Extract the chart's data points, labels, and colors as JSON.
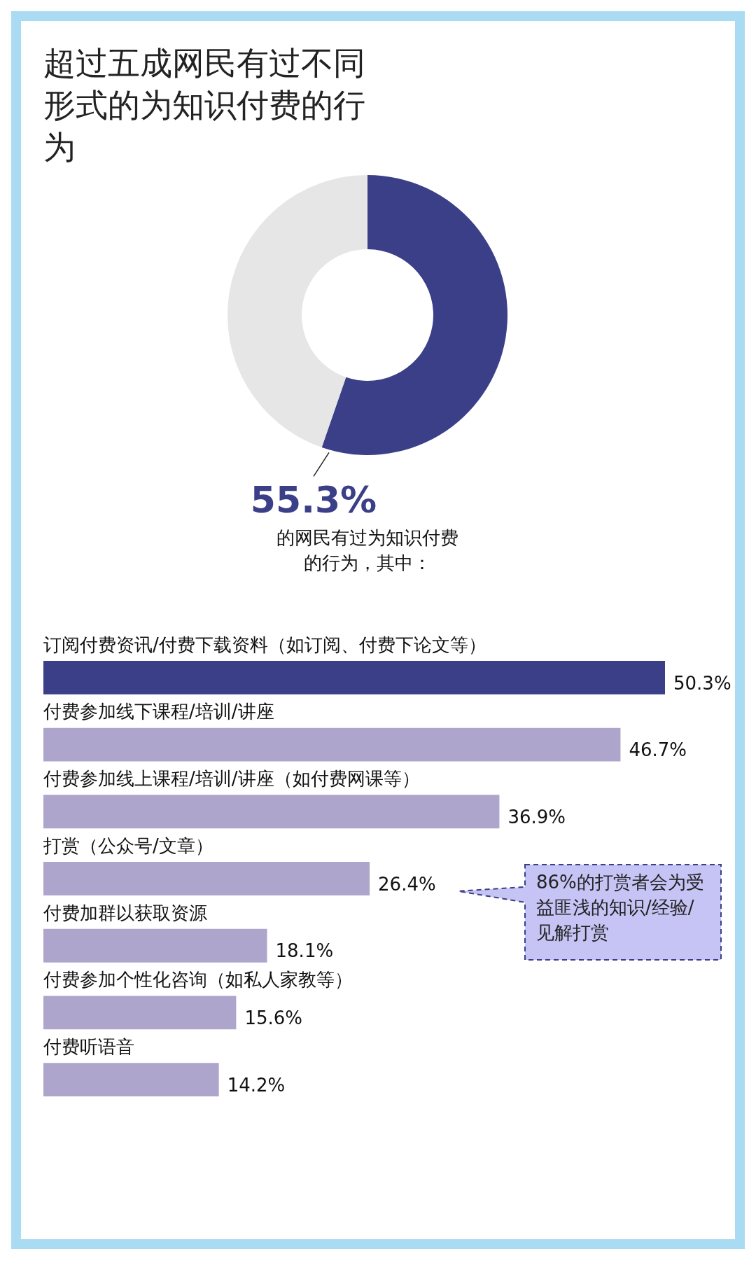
{
  "chart_data": [
    {
      "type": "donut",
      "title": "超过五成网民有过不同形式的为知识付费的行为",
      "categories": [
        null,
        null
      ],
      "values": [
        55.3,
        44.7
      ],
      "colors": [
        "#3b3f87",
        "#e6e6e6"
      ],
      "value_labels": [
        "55.3%",
        null
      ],
      "annotations": [
        "的网民有过为知识付费的行为，其中："
      ]
    },
    {
      "type": "bar",
      "orientation": "horizontal",
      "categories": [
        "订阅付费资讯/付费下载资料（如订阅、付费下论文等）",
        "付费参加线下课程/培训/讲座",
        "付费参加线上课程/培训/讲座（如付费网课等）",
        "打赏（公众号/文章）",
        "付费加群以获取资源",
        "付费参加个性化咨询（如私人家教等）",
        "付费听语音"
      ],
      "values": [
        50.3,
        46.7,
        36.9,
        26.4,
        18.1,
        15.6,
        14.2
      ],
      "colors": [
        "#3b3f87",
        "#aea5cc",
        "#aea5cc",
        "#aea5cc",
        "#aea5cc",
        "#aea5cc",
        "#aea5cc"
      ],
      "value_labels": [
        "50.3%",
        "46.7%",
        "36.9%",
        "26.4%",
        "18.1%",
        "15.6%",
        "14.2%"
      ],
      "tick_labels": false,
      "annotations": [
        "86%的打赏者会为受益匪浅的知识/经验/见解打赏"
      ]
    }
  ]
}
